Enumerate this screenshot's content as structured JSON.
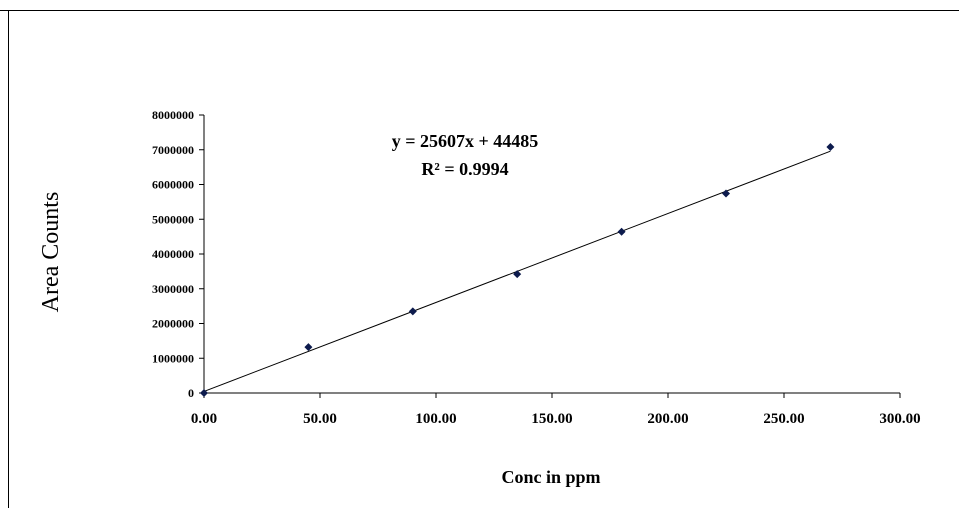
{
  "chart_data": {
    "type": "scatter",
    "xlabel": "Conc in ppm",
    "ylabel": "Area Counts",
    "xlim": [
      0,
      300
    ],
    "ylim": [
      0,
      8000000
    ],
    "x_ticks": [
      "0.00",
      "50.00",
      "100.00",
      "150.00",
      "200.00",
      "250.00",
      "300.00"
    ],
    "y_ticks": [
      "0",
      "1000000",
      "2000000",
      "3000000",
      "4000000",
      "5000000",
      "6000000",
      "7000000",
      "8000000"
    ],
    "grid": false,
    "series": [
      {
        "x": [
          0,
          45,
          90,
          135,
          180,
          225,
          270
        ],
        "y": [
          0,
          1320000,
          2350000,
          3420000,
          4640000,
          5740000,
          7080000
        ]
      }
    ],
    "trendline": {
      "slope": 25607,
      "intercept": 44485,
      "equation": "y = 25607x + 44485",
      "r2_label": "R² = 0.9994"
    },
    "colors": {
      "marker": "#0d1b4d",
      "line": "#000000"
    }
  }
}
